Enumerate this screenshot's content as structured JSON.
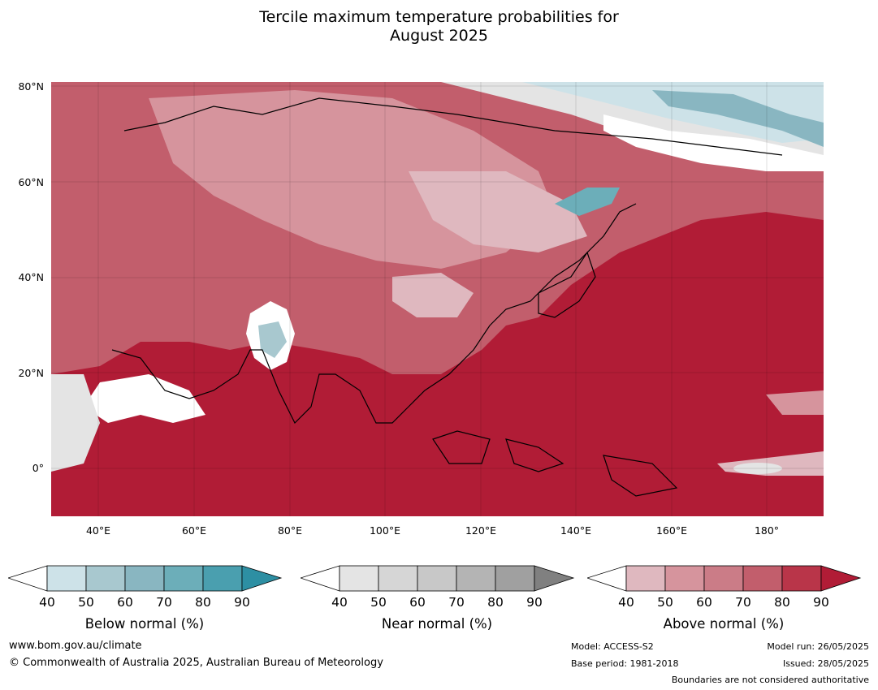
{
  "title_line1": "Tercile maximum temperature probabilities for",
  "title_line2": "August 2025",
  "map": {
    "lat_labels": [
      "80°N",
      "60°N",
      "40°N",
      "20°N",
      "0°"
    ],
    "lon_labels": [
      "40°E",
      "60°E",
      "80°E",
      "100°E",
      "120°E",
      "140°E",
      "160°E",
      "180°"
    ]
  },
  "legend": {
    "ticks": [
      "40",
      "50",
      "60",
      "70",
      "80",
      "90"
    ],
    "below": {
      "title": "Below normal (%)",
      "colors": [
        "#cde2e8",
        "#a8c8cf",
        "#89b6c1",
        "#6caeb9",
        "#4a9faf",
        "#2d8fa3"
      ]
    },
    "near": {
      "title": "Near normal (%)",
      "colors": [
        "#e4e4e4",
        "#d6d6d6",
        "#c8c8c8",
        "#b4b4b4",
        "#a0a0a0",
        "#808080"
      ]
    },
    "above": {
      "title": "Above normal (%)",
      "colors": [
        "#dfb8bf",
        "#d6949d",
        "#cb7c87",
        "#c25e6c",
        "#b93549",
        "#b11c36"
      ]
    }
  },
  "footer": {
    "url": "www.bom.gov.au/climate",
    "copyright": "© Commonwealth of Australia 2025, Australian Bureau of Meteorology",
    "model": "Model: ACCESS-S2",
    "base_period": "Base period: 1981-2018",
    "model_run": "Model run: 26/05/2025",
    "issued": "Issued: 28/05/2025",
    "disclaimer": "Boundaries are not considered authoritative"
  }
}
